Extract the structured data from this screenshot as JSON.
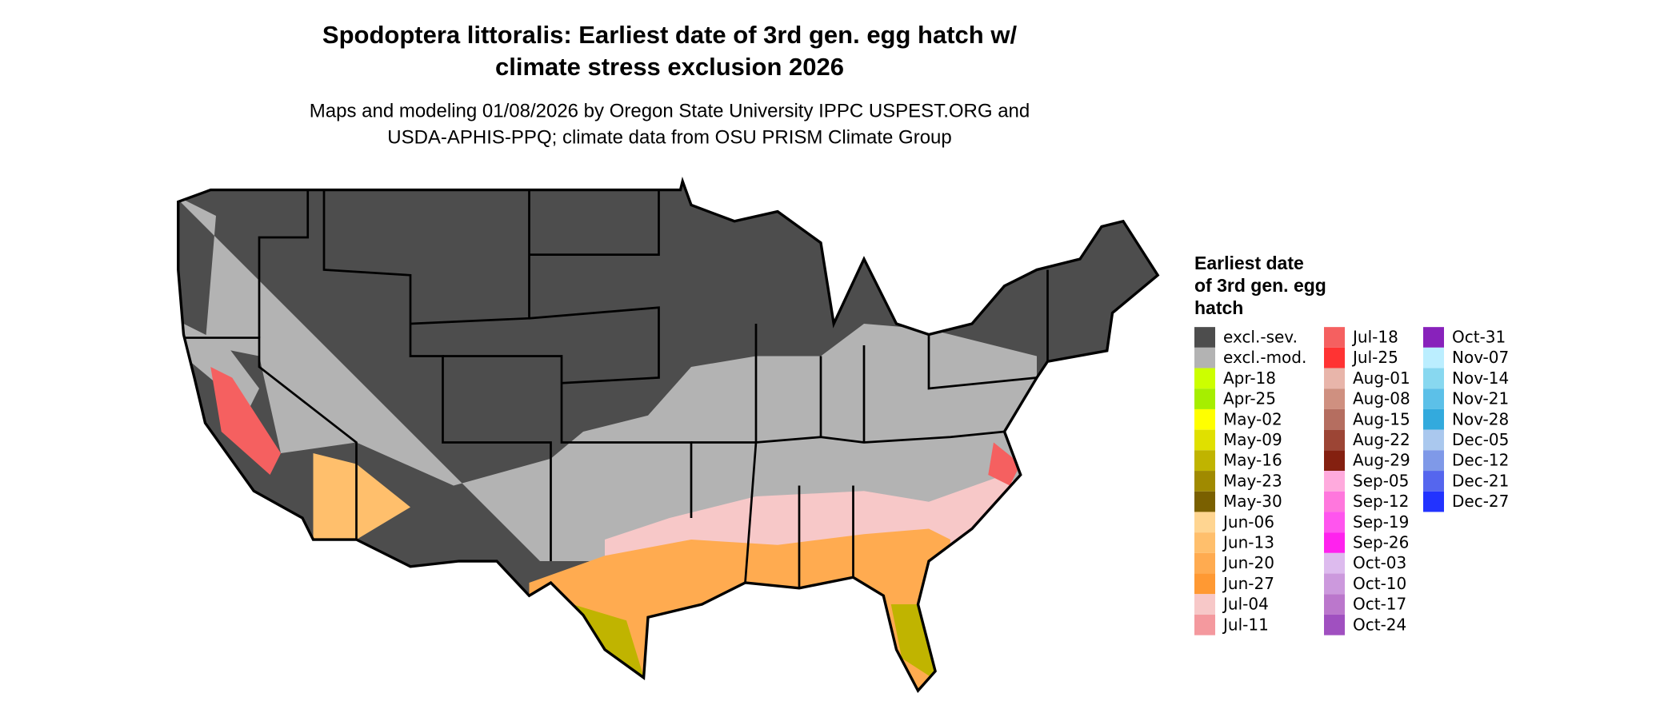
{
  "title_lines": [
    "Spodoptera littoralis: Earliest date of 3rd gen. egg hatch w/",
    "climate stress exclusion 2026"
  ],
  "subtitle_lines": [
    "Maps and modeling 01/08/2026 by Oregon State University IPPC USPEST.ORG and",
    "USDA-APHIS-PPQ; climate data from OSU PRISM Climate Group"
  ],
  "legend": {
    "title_lines": [
      "Earliest date",
      "of 3rd gen. egg",
      "hatch"
    ],
    "items": [
      {
        "label": "excl.-sev.",
        "color": "#4d4d4d"
      },
      {
        "label": "excl.-mod.",
        "color": "#b3b3b3"
      },
      {
        "label": "Apr-18",
        "color": "#ccff00"
      },
      {
        "label": "Apr-25",
        "color": "#a6ee00"
      },
      {
        "label": "May-02",
        "color": "#ffff00"
      },
      {
        "label": "May-09",
        "color": "#e0e000"
      },
      {
        "label": "May-16",
        "color": "#c0b400"
      },
      {
        "label": "May-23",
        "color": "#a08a00"
      },
      {
        "label": "May-30",
        "color": "#7a6000"
      },
      {
        "label": "Jun-06",
        "color": "#ffd591"
      },
      {
        "label": "Jun-13",
        "color": "#ffbf6c"
      },
      {
        "label": "Jun-20",
        "color": "#ffab50"
      },
      {
        "label": "Jun-27",
        "color": "#ff9933"
      },
      {
        "label": "Jul-04",
        "color": "#f7c8c8"
      },
      {
        "label": "Jul-11",
        "color": "#f4999e"
      },
      {
        "label": "Jul-18",
        "color": "#f56060"
      },
      {
        "label": "Jul-25",
        "color": "#ff3333"
      },
      {
        "label": "Aug-01",
        "color": "#e8b5aa"
      },
      {
        "label": "Aug-08",
        "color": "#cf9080"
      },
      {
        "label": "Aug-15",
        "color": "#b56e60"
      },
      {
        "label": "Aug-22",
        "color": "#9c4535"
      },
      {
        "label": "Aug-29",
        "color": "#842010"
      },
      {
        "label": "Sep-05",
        "color": "#ffaadd"
      },
      {
        "label": "Sep-12",
        "color": "#ff77dd"
      },
      {
        "label": "Sep-19",
        "color": "#ff55ee"
      },
      {
        "label": "Sep-26",
        "color": "#ff22ee"
      },
      {
        "label": "Oct-03",
        "color": "#ddbbee"
      },
      {
        "label": "Oct-10",
        "color": "#cc99dd"
      },
      {
        "label": "Oct-17",
        "color": "#bb77cc"
      },
      {
        "label": "Oct-24",
        "color": "#a050c0"
      },
      {
        "label": "Oct-31",
        "color": "#8822bb"
      },
      {
        "label": "Nov-07",
        "color": "#bbeeff"
      },
      {
        "label": "Nov-14",
        "color": "#88d8f0"
      },
      {
        "label": "Nov-21",
        "color": "#5cc0e8"
      },
      {
        "label": "Nov-28",
        "color": "#33aadd"
      },
      {
        "label": "Dec-05",
        "color": "#aac8ee"
      },
      {
        "label": "Dec-12",
        "color": "#7f99e8"
      },
      {
        "label": "Dec-21",
        "color": "#5566ee"
      },
      {
        "label": "Dec-27",
        "color": "#2233ff"
      }
    ]
  }
}
